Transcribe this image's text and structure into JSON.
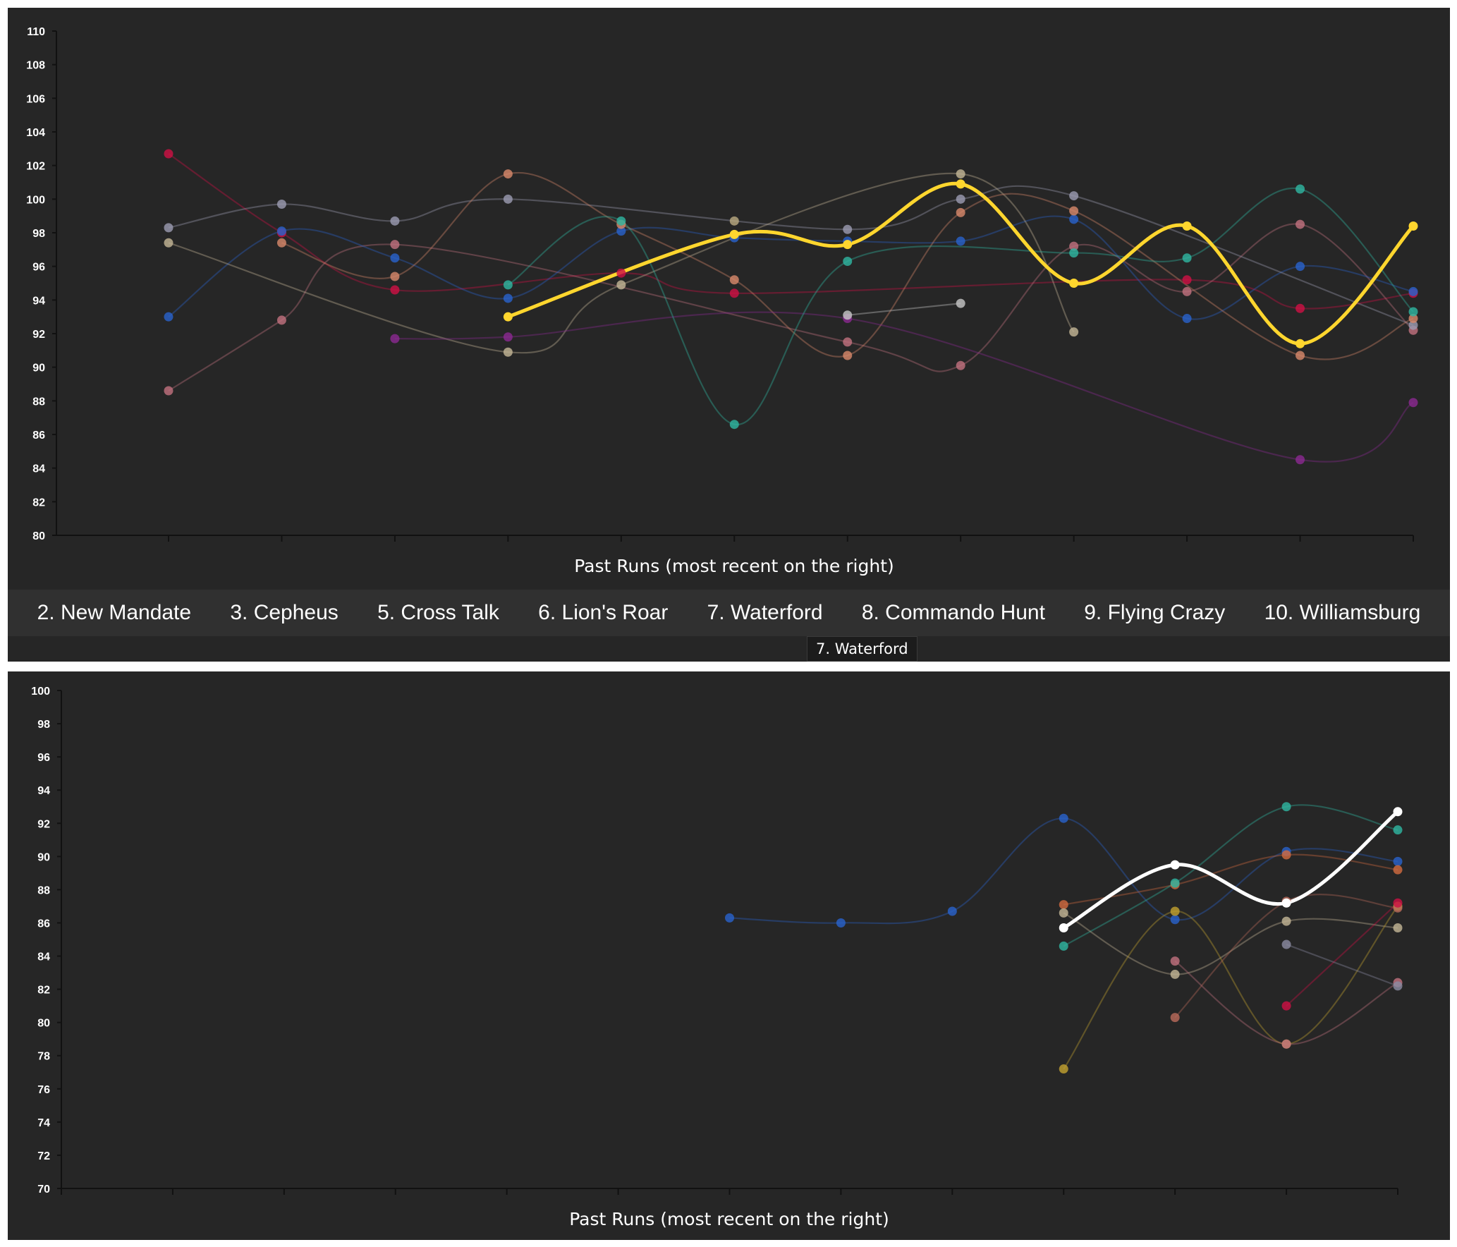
{
  "tabs": [
    "2. New Mandate",
    "3. Cepheus",
    "5. Cross Talk",
    "6. Lion's Roar",
    "7. Waterford",
    "8. Commando Hunt",
    "9. Flying Crazy",
    "10. Williamsburg"
  ],
  "tooltip": "7. Waterford",
  "chart_data": [
    {
      "type": "line",
      "xlabel": "Past Runs (most recent on the right)",
      "ylim": [
        80,
        110
      ],
      "yticks": [
        80,
        82,
        84,
        86,
        88,
        90,
        92,
        94,
        96,
        98,
        100,
        102,
        104,
        106,
        108,
        110
      ],
      "x_count": 12,
      "highlighted_series": "Waterford",
      "series": [
        {
          "color": "#cc1144",
          "values": [
            102.7,
            98.0,
            94.6,
            null,
            95.6,
            94.4,
            null,
            null,
            null,
            95.2,
            93.5,
            94.4
          ]
        },
        {
          "color": "#c0707e",
          "values": [
            88.6,
            92.8,
            97.3,
            null,
            null,
            null,
            91.5,
            90.1,
            97.2,
            94.5,
            98.5,
            92.2
          ]
        },
        {
          "color": "#2a62c9",
          "values": [
            93.0,
            98.1,
            96.5,
            94.1,
            98.1,
            97.7,
            97.5,
            97.5,
            98.8,
            92.9,
            96.0,
            94.5
          ]
        },
        {
          "color": "#9a9ab0",
          "values": [
            98.3,
            99.7,
            98.7,
            100.0,
            null,
            null,
            98.2,
            100.0,
            100.2,
            null,
            null,
            92.5
          ]
        },
        {
          "color": "#c2b495",
          "values": [
            97.4,
            null,
            null,
            90.9,
            94.9,
            null,
            null,
            101.5,
            92.1,
            null,
            null,
            null
          ]
        },
        {
          "color": "#d6876a",
          "values": [
            null,
            97.4,
            95.4,
            101.5,
            98.5,
            95.2,
            90.7,
            99.2,
            99.3,
            null,
            90.7,
            92.9
          ]
        },
        {
          "color": "#8a2a90",
          "values": [
            null,
            null,
            91.7,
            91.8,
            null,
            null,
            92.9,
            null,
            null,
            null,
            84.5,
            87.9
          ]
        },
        {
          "color": "#2fb5a0",
          "values": [
            null,
            null,
            null,
            94.9,
            98.7,
            86.6,
            96.3,
            null,
            96.8,
            96.5,
            100.6,
            93.3
          ]
        },
        {
          "color": "#c4c4c4",
          "values": [
            null,
            null,
            null,
            null,
            null,
            null,
            93.1,
            93.8,
            null,
            null,
            null,
            null
          ]
        },
        {
          "color": "#b8a880",
          "values": [
            null,
            null,
            null,
            null,
            null,
            98.7,
            null,
            null,
            null,
            null,
            null,
            null
          ]
        },
        {
          "name": "Waterford",
          "color": "#ffd62e",
          "values": [
            null,
            null,
            null,
            93.0,
            null,
            97.9,
            97.3,
            100.9,
            95.0,
            98.4,
            91.4,
            98.4
          ]
        }
      ]
    },
    {
      "type": "line",
      "xlabel": "Past Runs (most recent on the right)",
      "ylim": [
        70,
        100
      ],
      "yticks": [
        70,
        72,
        74,
        76,
        78,
        80,
        82,
        84,
        86,
        88,
        90,
        92,
        94,
        96,
        98,
        100
      ],
      "x_count": 13,
      "series": [
        {
          "color": "#2a62c9",
          "values": [
            null,
            null,
            null,
            null,
            null,
            null,
            86.3,
            86.0,
            86.7,
            92.3,
            86.2,
            90.3,
            89.7
          ]
        },
        {
          "color": "#d06a40",
          "values": [
            null,
            null,
            null,
            null,
            null,
            null,
            null,
            null,
            null,
            87.1,
            88.3,
            90.1,
            89.2
          ]
        },
        {
          "color": "#2fb5a0",
          "values": [
            null,
            null,
            null,
            null,
            null,
            null,
            null,
            null,
            null,
            84.6,
            88.4,
            93.0,
            91.6
          ]
        },
        {
          "color": "#c2b495",
          "values": [
            null,
            null,
            null,
            null,
            null,
            null,
            null,
            null,
            null,
            86.6,
            82.9,
            86.1,
            85.7
          ]
        },
        {
          "color": "#c0a030",
          "values": [
            null,
            null,
            null,
            null,
            null,
            null,
            null,
            null,
            null,
            77.2,
            86.7,
            78.7,
            87.0
          ]
        },
        {
          "color": "#c0707e",
          "values": [
            null,
            null,
            null,
            null,
            null,
            null,
            null,
            null,
            null,
            null,
            83.7,
            78.7,
            82.4
          ]
        },
        {
          "color": "#b86a5a",
          "values": [
            null,
            null,
            null,
            null,
            null,
            null,
            null,
            null,
            null,
            null,
            80.3,
            87.3,
            86.9
          ]
        },
        {
          "color": "#cc1144",
          "values": [
            null,
            null,
            null,
            null,
            null,
            null,
            null,
            null,
            null,
            null,
            null,
            81.0,
            87.2
          ]
        },
        {
          "color": "#8a8aa0",
          "values": [
            null,
            null,
            null,
            null,
            null,
            null,
            null,
            null,
            null,
            null,
            null,
            84.7,
            82.2
          ]
        },
        {
          "color": "#ffffff",
          "values": [
            null,
            null,
            null,
            null,
            null,
            null,
            null,
            null,
            null,
            85.7,
            89.5,
            87.2,
            92.7
          ]
        }
      ]
    }
  ]
}
